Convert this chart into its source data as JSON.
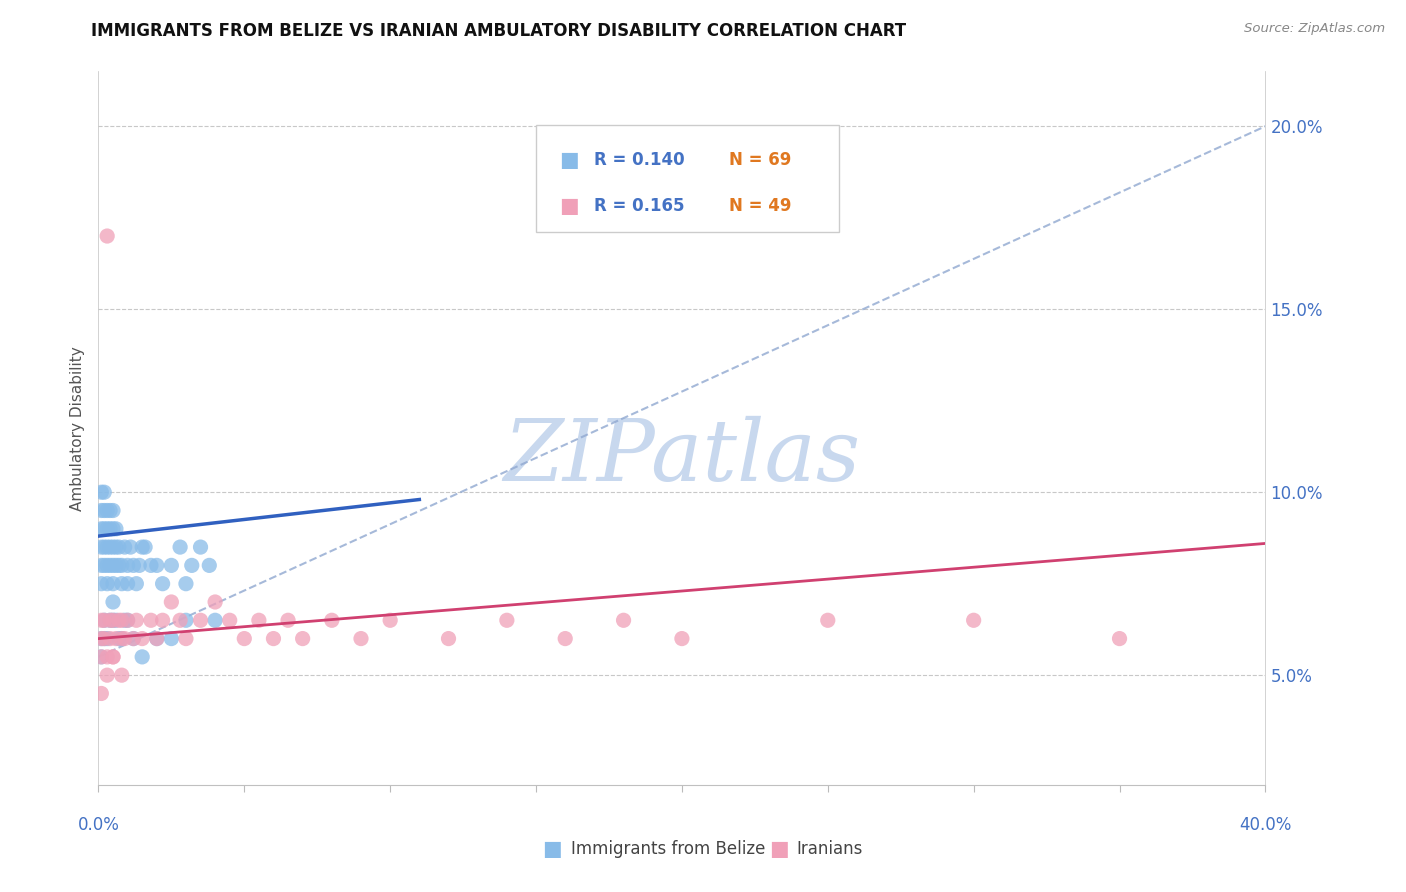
{
  "title": "IMMIGRANTS FROM BELIZE VS IRANIAN AMBULATORY DISABILITY CORRELATION CHART",
  "source": "Source: ZipAtlas.com",
  "ylabel": "Ambulatory Disability",
  "y_ticks": [
    0.05,
    0.1,
    0.15,
    0.2
  ],
  "y_tick_labels": [
    "5.0%",
    "10.0%",
    "15.0%",
    "20.0%"
  ],
  "xlim": [
    0.0,
    0.4
  ],
  "ylim": [
    0.02,
    0.215
  ],
  "belize_R": 0.14,
  "belize_N": 69,
  "iranian_R": 0.165,
  "iranian_N": 49,
  "belize_color": "#88BBE8",
  "iranian_color": "#F0A0B8",
  "belize_line_color": "#3060C0",
  "iranian_line_color": "#D04070",
  "dashed_line_color": "#90A8D0",
  "title_color": "#111111",
  "source_color": "#888888",
  "axis_label_color": "#4472C4",
  "ylabel_color": "#555555",
  "legend_R_color": "#4472C4",
  "legend_N_color": "#E07820",
  "watermark_color": "#C8D8EE",
  "belize_x": [
    0.001,
    0.001,
    0.001,
    0.001,
    0.001,
    0.001,
    0.002,
    0.002,
    0.002,
    0.002,
    0.002,
    0.003,
    0.003,
    0.003,
    0.003,
    0.003,
    0.004,
    0.004,
    0.004,
    0.004,
    0.005,
    0.005,
    0.005,
    0.005,
    0.005,
    0.006,
    0.006,
    0.006,
    0.007,
    0.007,
    0.008,
    0.008,
    0.009,
    0.01,
    0.01,
    0.011,
    0.012,
    0.013,
    0.014,
    0.015,
    0.016,
    0.018,
    0.02,
    0.022,
    0.025,
    0.028,
    0.03,
    0.032,
    0.035,
    0.038,
    0.001,
    0.001,
    0.002,
    0.002,
    0.003,
    0.004,
    0.005,
    0.005,
    0.006,
    0.007,
    0.008,
    0.009,
    0.01,
    0.012,
    0.015,
    0.02,
    0.025,
    0.03,
    0.04
  ],
  "belize_y": [
    0.075,
    0.08,
    0.085,
    0.09,
    0.095,
    0.1,
    0.08,
    0.085,
    0.09,
    0.095,
    0.1,
    0.075,
    0.08,
    0.085,
    0.09,
    0.095,
    0.08,
    0.085,
    0.09,
    0.095,
    0.075,
    0.08,
    0.085,
    0.09,
    0.095,
    0.08,
    0.085,
    0.09,
    0.08,
    0.085,
    0.075,
    0.08,
    0.085,
    0.075,
    0.08,
    0.085,
    0.08,
    0.075,
    0.08,
    0.085,
    0.085,
    0.08,
    0.08,
    0.075,
    0.08,
    0.085,
    0.075,
    0.08,
    0.085,
    0.08,
    0.055,
    0.06,
    0.06,
    0.065,
    0.06,
    0.065,
    0.065,
    0.07,
    0.065,
    0.06,
    0.06,
    0.065,
    0.065,
    0.06,
    0.055,
    0.06,
    0.06,
    0.065,
    0.065
  ],
  "iranian_x": [
    0.001,
    0.001,
    0.001,
    0.002,
    0.002,
    0.003,
    0.003,
    0.004,
    0.004,
    0.005,
    0.005,
    0.006,
    0.007,
    0.008,
    0.008,
    0.009,
    0.01,
    0.012,
    0.013,
    0.015,
    0.018,
    0.02,
    0.022,
    0.025,
    0.028,
    0.03,
    0.035,
    0.04,
    0.045,
    0.05,
    0.055,
    0.06,
    0.065,
    0.07,
    0.08,
    0.09,
    0.1,
    0.12,
    0.14,
    0.16,
    0.18,
    0.2,
    0.25,
    0.3,
    0.35,
    0.001,
    0.003,
    0.005,
    0.008
  ],
  "iranian_y": [
    0.06,
    0.065,
    0.055,
    0.065,
    0.06,
    0.17,
    0.055,
    0.065,
    0.06,
    0.065,
    0.055,
    0.06,
    0.065,
    0.06,
    0.065,
    0.06,
    0.065,
    0.06,
    0.065,
    0.06,
    0.065,
    0.06,
    0.065,
    0.07,
    0.065,
    0.06,
    0.065,
    0.07,
    0.065,
    0.06,
    0.065,
    0.06,
    0.065,
    0.06,
    0.065,
    0.06,
    0.065,
    0.06,
    0.065,
    0.06,
    0.065,
    0.06,
    0.065,
    0.065,
    0.06,
    0.045,
    0.05,
    0.055,
    0.05
  ],
  "belize_trend": [
    0.0,
    0.11,
    0.088,
    0.098
  ],
  "iranian_trend": [
    0.0,
    0.4,
    0.06,
    0.086
  ],
  "dashed_trend": [
    0.0,
    0.4,
    0.055,
    0.2
  ]
}
